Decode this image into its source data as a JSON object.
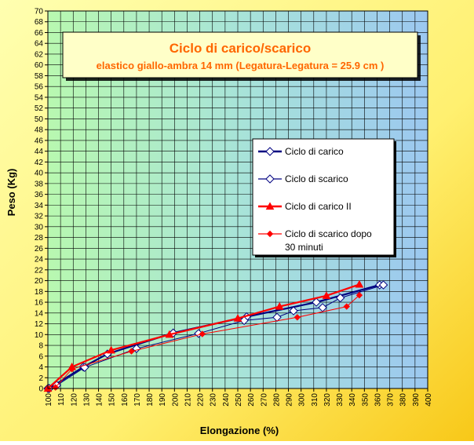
{
  "chart_data": {
    "type": "line",
    "title": "Ciclo di carico/scarico",
    "subtitle": "elastico giallo-ambra 14 mm (Legatura-Legatura = 25.9 cm )",
    "xlabel": "Elongazione (%)",
    "ylabel": "Peso (Kg)",
    "xlim": [
      100,
      400
    ],
    "ylim": [
      0,
      70
    ],
    "x_ticks": [
      100,
      110,
      120,
      130,
      140,
      150,
      160,
      170,
      180,
      190,
      200,
      210,
      220,
      230,
      240,
      250,
      260,
      270,
      280,
      290,
      300,
      310,
      320,
      330,
      340,
      350,
      360,
      370,
      380,
      390,
      400
    ],
    "y_ticks": [
      0,
      2,
      4,
      6,
      8,
      10,
      12,
      14,
      16,
      18,
      20,
      22,
      24,
      26,
      28,
      30,
      32,
      34,
      36,
      38,
      40,
      42,
      44,
      46,
      48,
      50,
      52,
      54,
      56,
      58,
      60,
      62,
      64,
      66,
      68,
      70
    ],
    "grid": true,
    "legend_position": "right",
    "series": [
      {
        "name": "Ciclo di carico",
        "color": "#000080",
        "marker": "diamond-open",
        "x": [
          100,
          101,
          128,
          147,
          199,
          257,
          312,
          362
        ],
        "y": [
          0,
          0,
          4,
          6.4,
          10.3,
          13.3,
          16.0,
          19.2
        ]
      },
      {
        "name": "Ciclo di scarico",
        "color": "#000080",
        "marker": "diamond-open",
        "x": [
          365,
          331,
          317,
          294,
          281,
          255,
          219,
          170,
          129,
          107,
          101
        ],
        "y": [
          19.2,
          16.8,
          15.0,
          14.4,
          13.2,
          12.6,
          10.2,
          7.4,
          3.9,
          0.6,
          0
        ]
      },
      {
        "name": "Ciclo di carico II",
        "color": "#FF0000",
        "marker": "triangle",
        "x": [
          100,
          119,
          150,
          196,
          250,
          283,
          320,
          346
        ],
        "y": [
          0,
          4.0,
          7.1,
          10.0,
          13.0,
          15.2,
          17.2,
          19.3
        ]
      },
      {
        "name": "Ciclo di scarico dopo 30 minuti",
        "name_lines": [
          "Ciclo di scarico dopo",
          "30 minuti"
        ],
        "color": "#FF0000",
        "marker": "diamond",
        "x": [
          346,
          336,
          297,
          222,
          166,
          119,
          106,
          100
        ],
        "y": [
          17.3,
          15.2,
          13.2,
          10.1,
          6.9,
          3.6,
          0.2,
          0
        ]
      }
    ]
  }
}
